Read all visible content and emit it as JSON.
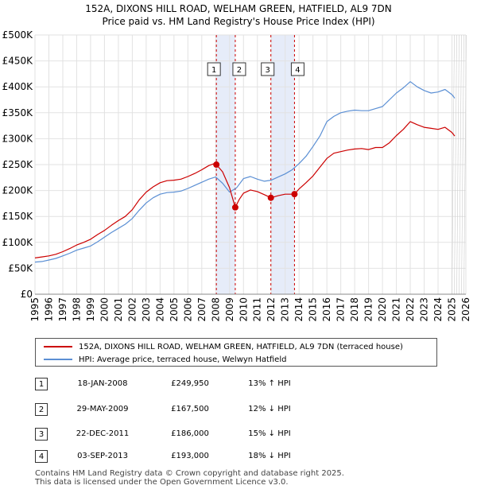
{
  "title_line1": "152A, DIXONS HILL ROAD, WELHAM GREEN, HATFIELD, AL9 7DN",
  "title_line2": "Price paid vs. HM Land Registry's House Price Index (HPI)",
  "colors": {
    "property": "#cc0000",
    "hpi": "#5b8fd4",
    "band": "#dde6f7",
    "marker_line": "#cc0000"
  },
  "legend": {
    "property": "152A, DIXONS HILL ROAD, WELHAM GREEN, HATFIELD, AL9 7DN (terraced house)",
    "hpi": "HPI: Average price, terraced house, Welwyn Hatfield"
  },
  "sales": [
    {
      "num": "1",
      "date": "18-JAN-2008",
      "price": "£249,950",
      "hpi_diff": "13% ↑ HPI"
    },
    {
      "num": "2",
      "date": "29-MAY-2009",
      "price": "£167,500",
      "hpi_diff": "12% ↓ HPI"
    },
    {
      "num": "3",
      "date": "22-DEC-2011",
      "price": "£186,000",
      "hpi_diff": "15% ↓ HPI"
    },
    {
      "num": "4",
      "date": "03-SEP-2013",
      "price": "£193,000",
      "hpi_diff": "18% ↓ HPI"
    }
  ],
  "footer": {
    "line1": "Contains HM Land Registry data © Crown copyright and database right 2025.",
    "line2": "This data is licensed under the Open Government Licence v3.0."
  },
  "chart_data": {
    "type": "line",
    "xlim": [
      1995,
      2026
    ],
    "ylim": [
      0,
      500000
    ],
    "x_ticks": [
      1995,
      1996,
      1997,
      1998,
      1999,
      2000,
      2001,
      2002,
      2003,
      2004,
      2005,
      2006,
      2007,
      2008,
      2009,
      2010,
      2011,
      2012,
      2013,
      2014,
      2015,
      2016,
      2017,
      2018,
      2019,
      2020,
      2021,
      2022,
      2023,
      2024,
      2025,
      2026
    ],
    "y_ticks": [
      0,
      50000,
      100000,
      150000,
      200000,
      250000,
      300000,
      350000,
      400000,
      450000,
      500000
    ],
    "y_tick_labels": [
      "£0",
      "£50K",
      "£100K",
      "£150K",
      "£200K",
      "£250K",
      "£300K",
      "£350K",
      "£400K",
      "£450K",
      "£500K"
    ],
    "grid": true,
    "sale_markers": [
      {
        "label": "1",
        "x": 2008.05,
        "y": 249950
      },
      {
        "label": "2",
        "x": 2009.41,
        "y": 167500
      },
      {
        "label": "3",
        "x": 2011.97,
        "y": 186000
      },
      {
        "label": "4",
        "x": 2013.67,
        "y": 193000
      }
    ],
    "shaded_bands": [
      [
        2008.05,
        2009.41
      ],
      [
        2011.97,
        2013.67
      ]
    ],
    "series": [
      {
        "name": "152A, DIXONS HILL ROAD, WELHAM GREEN, HATFIELD, AL9 7DN (terraced house)",
        "x": [
          1995,
          1995.5,
          1996,
          1996.5,
          1997,
          1997.5,
          1998,
          1998.5,
          1999,
          1999.5,
          2000,
          2000.5,
          2001,
          2001.5,
          2002,
          2002.5,
          2003,
          2003.5,
          2004,
          2004.5,
          2005,
          2005.5,
          2006,
          2006.5,
          2007,
          2007.5,
          2008,
          2008.05,
          2008.5,
          2009,
          2009.41,
          2009.7,
          2010,
          2010.5,
          2011,
          2011.5,
          2011.97,
          2012.5,
          2013,
          2013.67,
          2014,
          2014.5,
          2015,
          2015.5,
          2016,
          2016.5,
          2017,
          2017.5,
          2018,
          2018.5,
          2019,
          2019.5,
          2020,
          2020.5,
          2021,
          2021.5,
          2022,
          2022.5,
          2023,
          2023.5,
          2024,
          2024.5,
          2025,
          2025.2
        ],
        "y": [
          70000,
          72000,
          74000,
          77000,
          82000,
          88000,
          95000,
          100000,
          106000,
          115000,
          123000,
          133000,
          142000,
          150000,
          163000,
          182000,
          197000,
          207000,
          215000,
          219000,
          220000,
          222000,
          227000,
          233000,
          240000,
          248000,
          253000,
          249950,
          236000,
          205000,
          167500,
          183000,
          195000,
          201000,
          198000,
          192000,
          186000,
          190000,
          193000,
          193000,
          203000,
          215000,
          228000,
          245000,
          262000,
          272000,
          275000,
          278000,
          280000,
          281000,
          279000,
          283000,
          283000,
          292000,
          306000,
          318000,
          333000,
          327000,
          322000,
          320000,
          318000,
          322000,
          312000,
          305000
        ]
      },
      {
        "name": "HPI: Average price, terraced house, Welwyn Hatfield",
        "x": [
          1995,
          1995.5,
          1996,
          1996.5,
          1997,
          1997.5,
          1998,
          1998.5,
          1999,
          1999.5,
          2000,
          2000.5,
          2001,
          2001.5,
          2002,
          2002.5,
          2003,
          2003.5,
          2004,
          2004.5,
          2005,
          2005.5,
          2006,
          2006.5,
          2007,
          2007.5,
          2008,
          2008.5,
          2009,
          2009.5,
          2010,
          2010.5,
          2011,
          2011.5,
          2012,
          2012.5,
          2013,
          2013.5,
          2014,
          2014.5,
          2015,
          2015.5,
          2016,
          2016.5,
          2017,
          2017.5,
          2018,
          2018.5,
          2019,
          2019.5,
          2020,
          2020.5,
          2021,
          2021.5,
          2022,
          2022.5,
          2023,
          2023.5,
          2024,
          2024.5,
          2025,
          2025.2
        ],
        "y": [
          62000,
          63000,
          66000,
          69000,
          74000,
          79000,
          85000,
          89000,
          93000,
          101000,
          110000,
          119000,
          127000,
          135000,
          146000,
          162000,
          176000,
          186000,
          193000,
          196000,
          197000,
          199000,
          204000,
          210000,
          216000,
          222000,
          226000,
          214000,
          197000,
          205000,
          223000,
          227000,
          222000,
          218000,
          220000,
          226000,
          232000,
          240000,
          252000,
          266000,
          285000,
          305000,
          333000,
          343000,
          350000,
          353000,
          355000,
          354000,
          354000,
          358000,
          362000,
          375000,
          388000,
          398000,
          410000,
          400000,
          393000,
          388000,
          390000,
          395000,
          385000,
          378000
        ]
      }
    ]
  }
}
